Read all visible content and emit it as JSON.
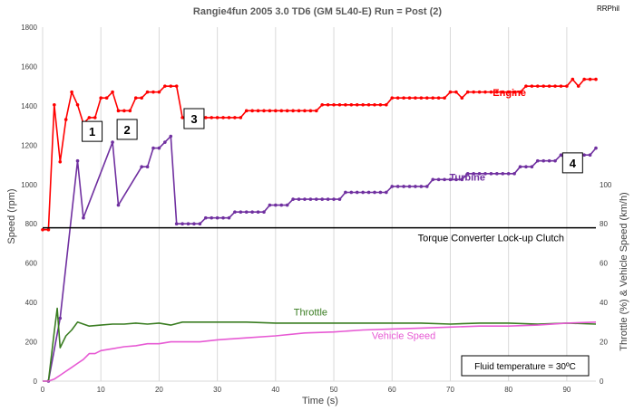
{
  "chart_data": {
    "type": "line",
    "title": "Rangie4fun   2005 3.0 TD6  (GM 5L40-E)   Run = Post (2)",
    "credit": "RRPhil",
    "xlabel": "Time (s)",
    "ylabel": "Speed (rpm)",
    "y2label": "Throttle (%) & Vehicle Speed (km/h)",
    "xlim": [
      0,
      95
    ],
    "ylim": [
      0,
      1800
    ],
    "y2lim": [
      0,
      180
    ],
    "xticks": [
      0,
      10,
      20,
      30,
      40,
      50,
      60,
      70,
      80,
      90
    ],
    "yticks": [
      0,
      200,
      400,
      600,
      800,
      1000,
      1200,
      1400,
      1600,
      1800
    ],
    "y2ticks": [
      0,
      20,
      40,
      60,
      80,
      100
    ],
    "grid": "vertical",
    "reference_line": {
      "y": 780,
      "label": "Torque Converter Lock-up Clutch"
    },
    "note": "Fluid temperature = 30ºC",
    "series": [
      {
        "name": "Engine",
        "axis": "left",
        "color": "#ff0000",
        "markers": true,
        "x": [
          0,
          1,
          2,
          3,
          4,
          5,
          6,
          7,
          8,
          9,
          10,
          11,
          12,
          13,
          14,
          15,
          16,
          17,
          18,
          19,
          20,
          21,
          22,
          23,
          24,
          25,
          26,
          27,
          28,
          29,
          30,
          31,
          32,
          33,
          34,
          35,
          36,
          37,
          38,
          39,
          40,
          41,
          42,
          43,
          44,
          45,
          46,
          47,
          48,
          49,
          50,
          51,
          52,
          53,
          54,
          55,
          56,
          57,
          58,
          59,
          60,
          61,
          62,
          63,
          64,
          65,
          66,
          67,
          68,
          69,
          70,
          71,
          72,
          73,
          74,
          75,
          76,
          77,
          78,
          79,
          80,
          81,
          82,
          83,
          84,
          85,
          86,
          87,
          88,
          89,
          90,
          91,
          92,
          93,
          94,
          95
        ],
        "y": [
          770,
          770,
          1405,
          1115,
          1330,
          1470,
          1405,
          1310,
          1340,
          1340,
          1440,
          1440,
          1470,
          1375,
          1375,
          1375,
          1440,
          1440,
          1470,
          1470,
          1470,
          1500,
          1500,
          1500,
          1340,
          1340,
          1340,
          1340,
          1340,
          1340,
          1340,
          1340,
          1340,
          1340,
          1340,
          1375,
          1375,
          1375,
          1375,
          1375,
          1375,
          1375,
          1375,
          1375,
          1375,
          1375,
          1375,
          1375,
          1405,
          1405,
          1405,
          1405,
          1405,
          1405,
          1405,
          1405,
          1405,
          1405,
          1405,
          1405,
          1440,
          1440,
          1440,
          1440,
          1440,
          1440,
          1440,
          1440,
          1440,
          1440,
          1470,
          1470,
          1440,
          1470,
          1470,
          1470,
          1470,
          1470,
          1470,
          1470,
          1470,
          1470,
          1470,
          1500,
          1500,
          1500,
          1500,
          1500,
          1500,
          1500,
          1500,
          1535,
          1500,
          1535,
          1535,
          1535
        ]
      },
      {
        "name": "Turbine",
        "axis": "left",
        "color": "#7030a0",
        "markers": true,
        "x": [
          1,
          3,
          6,
          7,
          12,
          13,
          17,
          18,
          19,
          20,
          21,
          22,
          23,
          24,
          25,
          26,
          27,
          28,
          29,
          30,
          31,
          32,
          33,
          34,
          35,
          36,
          37,
          38,
          39,
          40,
          41,
          42,
          43,
          44,
          45,
          46,
          47,
          48,
          49,
          50,
          51,
          52,
          53,
          54,
          55,
          56,
          57,
          58,
          59,
          60,
          61,
          62,
          63,
          64,
          65,
          66,
          67,
          68,
          69,
          70,
          71,
          72,
          73,
          74,
          75,
          76,
          77,
          78,
          79,
          80,
          81,
          82,
          83,
          84,
          85,
          86,
          87,
          88,
          89,
          90,
          91,
          92,
          93,
          94,
          95
        ],
        "y": [
          0,
          320,
          1120,
          830,
          1215,
          895,
          1090,
          1090,
          1185,
          1185,
          1215,
          1245,
          800,
          800,
          800,
          800,
          800,
          830,
          830,
          830,
          830,
          830,
          860,
          860,
          860,
          860,
          860,
          860,
          895,
          895,
          895,
          895,
          925,
          925,
          925,
          925,
          925,
          925,
          925,
          925,
          925,
          960,
          960,
          960,
          960,
          960,
          960,
          960,
          960,
          990,
          990,
          990,
          990,
          990,
          990,
          990,
          1025,
          1025,
          1025,
          1025,
          1025,
          1025,
          1055,
          1055,
          1055,
          1055,
          1055,
          1055,
          1055,
          1055,
          1055,
          1090,
          1090,
          1090,
          1120,
          1120,
          1120,
          1120,
          1150,
          1120,
          1120,
          1150,
          1150,
          1150,
          1185
        ]
      },
      {
        "name": "Throttle",
        "axis": "right",
        "color": "#3a7d22",
        "markers": false,
        "x": [
          0,
          1,
          2,
          2.5,
          3,
          4,
          5,
          6,
          7,
          8,
          10,
          12,
          14,
          16,
          18,
          20,
          22,
          24,
          30,
          35,
          40,
          45,
          50,
          55,
          60,
          65,
          70,
          75,
          80,
          85,
          90,
          95
        ],
        "y": [
          0,
          0,
          25,
          37,
          17,
          23,
          26,
          30,
          29,
          28,
          28.5,
          29,
          29,
          29.5,
          29,
          29.5,
          28.5,
          30,
          30,
          30,
          29.5,
          29.5,
          29.5,
          29.5,
          29.5,
          29.5,
          29,
          29.5,
          29.5,
          29,
          29.5,
          29
        ]
      },
      {
        "name": "Vehicle Speed",
        "axis": "right",
        "color": "#e75ad4",
        "markers": false,
        "x": [
          0,
          1,
          2,
          3,
          4,
          5,
          6,
          7,
          8,
          9,
          10,
          12,
          14,
          16,
          18,
          20,
          22,
          25,
          27,
          30,
          35,
          40,
          45,
          50,
          55,
          60,
          65,
          70,
          75,
          80,
          85,
          90,
          95
        ],
        "y": [
          0,
          0,
          1,
          3,
          5,
          7,
          9,
          11,
          14,
          14,
          15.5,
          16.5,
          17.5,
          18,
          19,
          19,
          20,
          20,
          20,
          21,
          22,
          23,
          24.5,
          25,
          26,
          26.5,
          27,
          27.5,
          28,
          28,
          28.5,
          29.5,
          30
        ]
      }
    ],
    "annotations": [
      {
        "label": "1",
        "x": 8.5,
        "y": 1270
      },
      {
        "label": "2",
        "x": 14.5,
        "y": 1280
      },
      {
        "label": "3",
        "x": 26,
        "y": 1335
      },
      {
        "label": "4",
        "x": 91,
        "y": 1110
      }
    ]
  }
}
